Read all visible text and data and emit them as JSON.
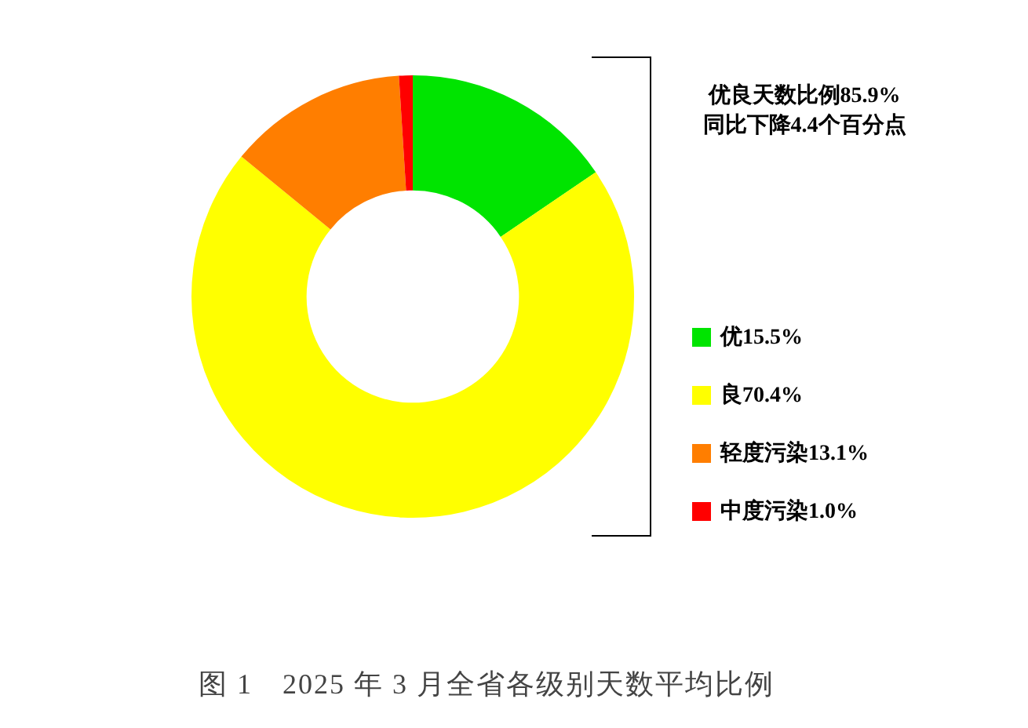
{
  "chart_data": {
    "type": "donut",
    "title": "图 1　2025 年 3 月全省各级别天数平均比例",
    "categories": [
      "优",
      "良",
      "轻度污染",
      "中度污染"
    ],
    "values": [
      15.5,
      70.4,
      13.1,
      1.0
    ],
    "value_labels": [
      "15.5%",
      "70.4%",
      "13.1%",
      "1.0%"
    ],
    "colors": [
      "#00e400",
      "#ffff00",
      "#ff7e00",
      "#ff0000"
    ],
    "annotations": [
      "优良天数比例85.9%",
      "同比下降4.4个百分点"
    ],
    "legend": "right"
  }
}
